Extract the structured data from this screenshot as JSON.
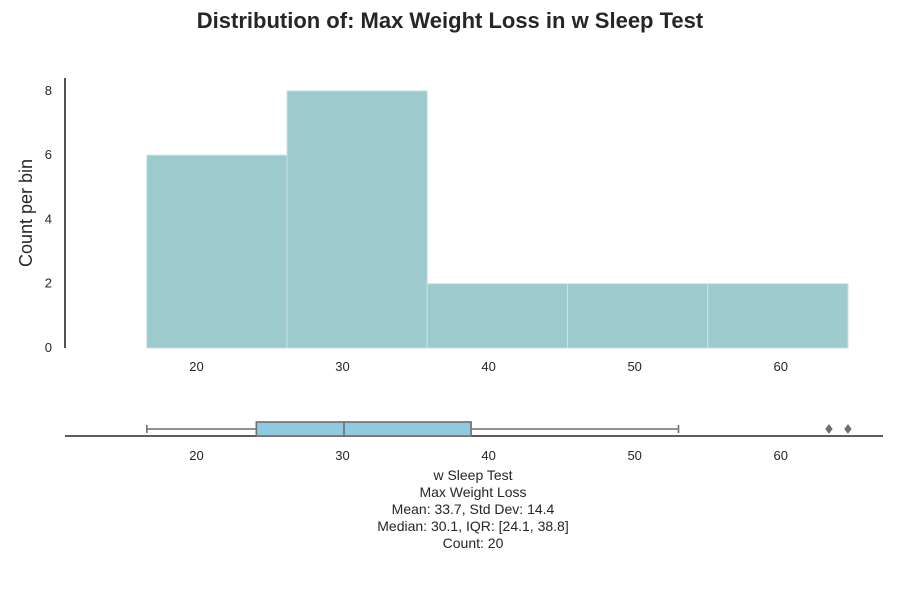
{
  "chart_title": "Distribution of: Max Weight Loss in w Sleep Test",
  "chart_data": [
    {
      "type": "histogram",
      "title": "Distribution of: Max Weight Loss in w Sleep Test",
      "xlabel": "",
      "ylabel": "Count per bin",
      "xlim": [
        11,
        67
      ],
      "ylim": [
        0,
        8.4
      ],
      "x_ticks": [
        20,
        30,
        40,
        50,
        60
      ],
      "y_ticks": [
        0,
        2,
        4,
        6,
        8
      ],
      "bins": [
        {
          "start": 16.6,
          "end": 26.2,
          "count": 6
        },
        {
          "start": 26.2,
          "end": 35.8,
          "count": 8
        },
        {
          "start": 35.8,
          "end": 45.4,
          "count": 2
        },
        {
          "start": 45.4,
          "end": 55.0,
          "count": 2
        },
        {
          "start": 55.0,
          "end": 64.6,
          "count": 2
        }
      ],
      "colors": {
        "bar": "#9dcbcd",
        "bar_edge": "#c7e2e3",
        "axis": "#262626"
      }
    },
    {
      "type": "boxplot",
      "xlim": [
        11,
        67
      ],
      "x_ticks": [
        20,
        30,
        40,
        50,
        60
      ],
      "whisker_low": 16.6,
      "q1": 24.1,
      "median": 30.1,
      "q3": 38.8,
      "whisker_high": 53.0,
      "outliers": [
        63.3,
        64.6
      ],
      "colors": {
        "box": "#91c9e1",
        "line": "#6f6f6f",
        "axis": "#262626"
      }
    }
  ],
  "summary": {
    "line1": "w Sleep Test",
    "line2": "Max Weight Loss",
    "line3": "Mean: 33.7, Std Dev: 14.4",
    "line4": "Median: 30.1, IQR: [24.1, 38.8]",
    "line5": "Count: 20"
  }
}
